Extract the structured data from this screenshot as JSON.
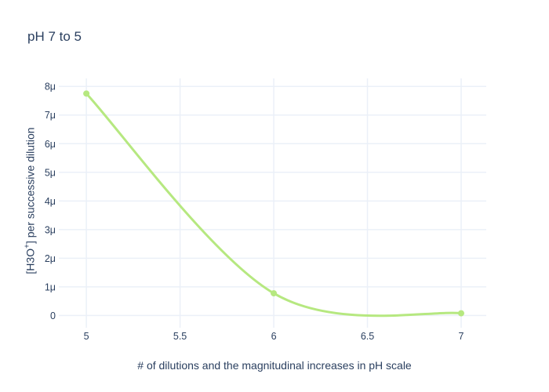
{
  "chart_data": {
    "type": "line",
    "title": "pH 7 to 5",
    "xlabel": "# of dilutions and the magnitudinal increases in pH scale",
    "ylabel": "[H3O+] per successive dilution",
    "ylabel_parts": {
      "prefix": "[H3O",
      "sup": "+",
      "suffix": "] per successive dilution"
    },
    "x": [
      5,
      6,
      7
    ],
    "y_micro": [
      7.75,
      0.775,
      0.0775
    ],
    "y_unit": "micro (SI prefix μ, ×10⁻⁶)",
    "series_note": "single unnamed trace, lines+markers, spline shape",
    "line_shape": "spline",
    "line_color": "#b6e880",
    "marker_color": "#b6e880",
    "x_tick_values": [
      5,
      5.5,
      6,
      6.5,
      7
    ],
    "x_tick_labels": [
      "5",
      "5.5",
      "6",
      "6.5",
      "7"
    ],
    "y_tick_values_micro": [
      0,
      1,
      2,
      3,
      4,
      5,
      6,
      7,
      8
    ],
    "y_tick_labels": [
      "0",
      "1μ",
      "2μ",
      "3μ",
      "4μ",
      "5μ",
      "6μ",
      "7μ",
      "8μ"
    ],
    "x_range": [
      4.874,
      7.134
    ],
    "y_range_micro": [
      -0.29,
      8.28
    ],
    "grid": true,
    "legend": "none",
    "colors": {
      "text": "#2a3f5f",
      "grid": "#ebf0f8",
      "background": "#ffffff"
    }
  }
}
